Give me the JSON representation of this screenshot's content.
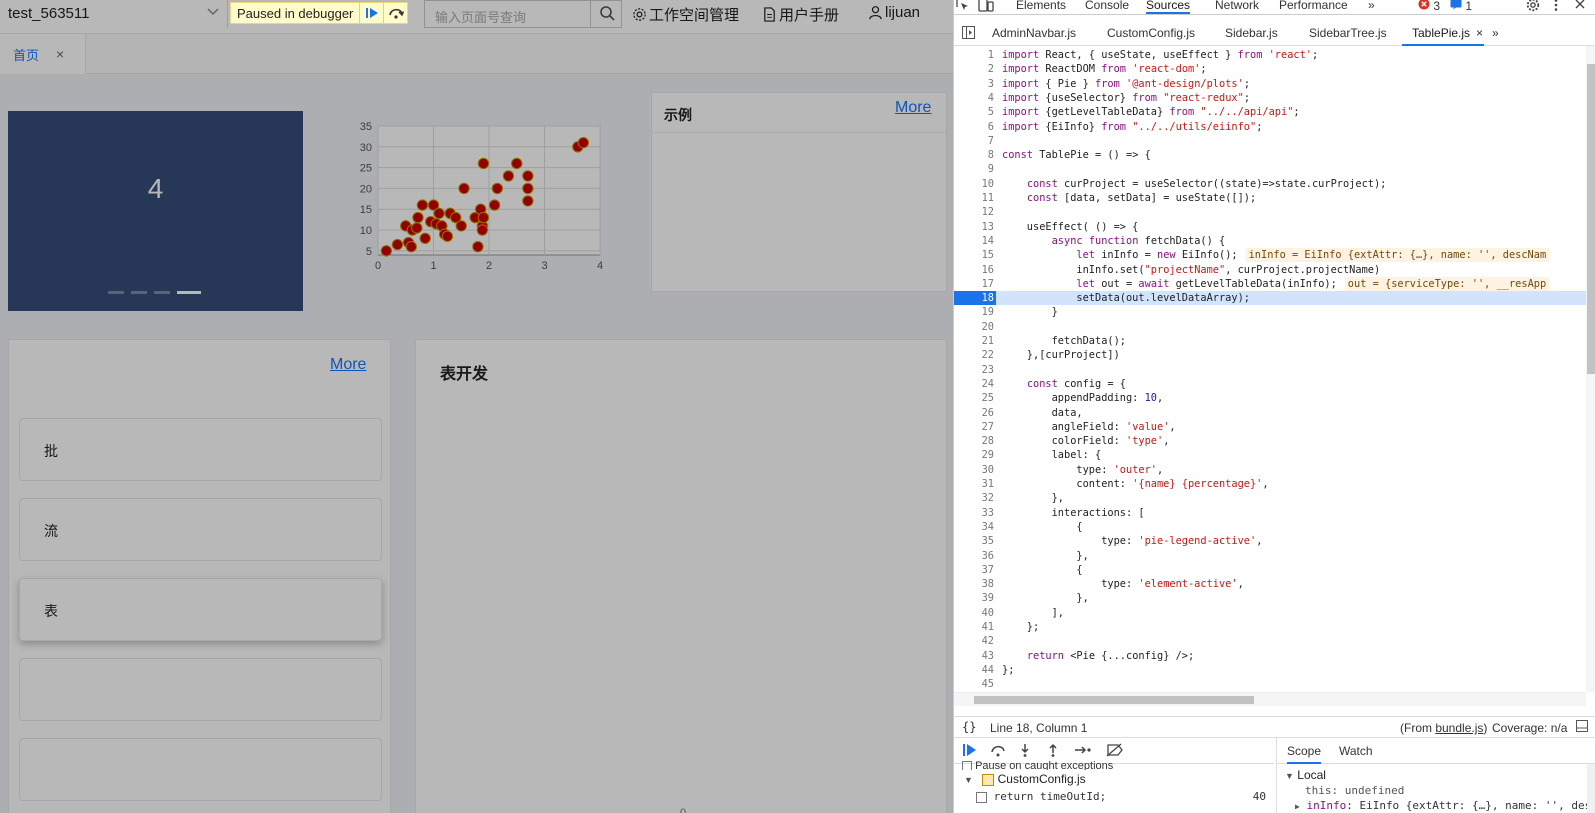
{
  "app": {
    "project_name": "test_563511",
    "search_placeholder": "输入页面号查询",
    "nav": {
      "workspace": "工作空间管理",
      "manual": "用户手册",
      "user": "lijuan"
    },
    "tab_home": "首页",
    "tab_close": "×",
    "carousel_value": "4",
    "carousel_slide_count": 4,
    "carousel_active_index": 3,
    "example_card": {
      "title": "示例",
      "more": "More"
    },
    "list_card": {
      "more": "More",
      "items": [
        {
          "label": "批",
          "selected": false
        },
        {
          "label": "流",
          "selected": false
        },
        {
          "label": "表",
          "selected": true
        },
        {
          "label": "",
          "selected": false
        },
        {
          "label": "",
          "selected": false
        }
      ]
    },
    "dev_card": {
      "title": "表开发",
      "axis_zero": "0"
    },
    "paused_banner": "Paused in debugger"
  },
  "chart_data": {
    "type": "scatter",
    "title": "",
    "xlabel": "",
    "ylabel": "",
    "xlim": [
      0,
      4
    ],
    "ylim": [
      4,
      35
    ],
    "xticks": [
      "0",
      "1",
      "2",
      "3",
      "4"
    ],
    "yticks": [
      "5",
      "10",
      "15",
      "20",
      "25",
      "30",
      "35"
    ],
    "grid": true,
    "point_color": "#cc0000",
    "point_stroke": "#c8a000",
    "points": [
      [
        0.15,
        5
      ],
      [
        0.35,
        6.5
      ],
      [
        0.5,
        11
      ],
      [
        0.55,
        7
      ],
      [
        0.6,
        6
      ],
      [
        0.62,
        10
      ],
      [
        0.7,
        10.5
      ],
      [
        0.72,
        13
      ],
      [
        0.8,
        16
      ],
      [
        0.85,
        8
      ],
      [
        0.95,
        12
      ],
      [
        1.0,
        16
      ],
      [
        1.05,
        11.5
      ],
      [
        1.1,
        14
      ],
      [
        1.15,
        11
      ],
      [
        1.2,
        9
      ],
      [
        1.25,
        8.5
      ],
      [
        1.3,
        14
      ],
      [
        1.4,
        13
      ],
      [
        1.5,
        11
      ],
      [
        1.55,
        20
      ],
      [
        1.75,
        13
      ],
      [
        1.8,
        6
      ],
      [
        1.85,
        15
      ],
      [
        1.88,
        11
      ],
      [
        1.88,
        10
      ],
      [
        1.9,
        26
      ],
      [
        1.9,
        13
      ],
      [
        2.1,
        16
      ],
      [
        2.15,
        20
      ],
      [
        2.35,
        23
      ],
      [
        2.5,
        26
      ],
      [
        2.7,
        23
      ],
      [
        2.7,
        20
      ],
      [
        2.7,
        17
      ],
      [
        3.6,
        30
      ],
      [
        3.7,
        31
      ]
    ]
  },
  "devtools": {
    "tabs": [
      "Elements",
      "Console",
      "Sources",
      "Network",
      "Performance"
    ],
    "active_tab": "Sources",
    "more_tabs": "»",
    "error_count": "3",
    "message_count": "1",
    "files": [
      "AdminNavbar.js",
      "CustomConfig.js",
      "Sidebar.js",
      "SidebarTree.js",
      "TablePie.js"
    ],
    "active_file": "TablePie.js",
    "file_close": "×",
    "current_line": 18,
    "code": [
      {
        "n": "1",
        "t": "import React, { useState, useEffect } from 'react';"
      },
      {
        "n": "2",
        "t": "import ReactDOM from 'react-dom';"
      },
      {
        "n": "3",
        "t": "import { Pie } from '@ant-design/plots';"
      },
      {
        "n": "4",
        "t": "import {useSelector} from \"react-redux\";"
      },
      {
        "n": "5",
        "t": "import {getLevelTableData} from \"../../api/api\";"
      },
      {
        "n": "6",
        "t": "import {EiInfo} from \"../../utils/eiinfo\";"
      },
      {
        "n": "7",
        "t": ""
      },
      {
        "n": "8",
        "t": "const TablePie = () => {"
      },
      {
        "n": "9",
        "t": ""
      },
      {
        "n": "10",
        "t": "    const curProject = useSelector((state)=>state.curProject);"
      },
      {
        "n": "11",
        "t": "    const [data, setData] = useState([]);"
      },
      {
        "n": "12",
        "t": ""
      },
      {
        "n": "13",
        "t": "    useEffect( () => {"
      },
      {
        "n": "14",
        "t": "        async function fetchData() {"
      },
      {
        "n": "15",
        "t": "            let inInfo = new EiInfo();",
        "inline": "inInfo = EiInfo {extAttr: {…}, name: '', descNam"
      },
      {
        "n": "16",
        "t": "            inInfo.set(\"projectName\", curProject.projectName)"
      },
      {
        "n": "17",
        "t": "            let out = await getLevelTableData(inInfo);",
        "inline": "out = {serviceType: '', __resApp"
      },
      {
        "n": "18",
        "t": "            setData(out.levelDataArray);"
      },
      {
        "n": "19",
        "t": "        }"
      },
      {
        "n": "20",
        "t": ""
      },
      {
        "n": "21",
        "t": "        fetchData();"
      },
      {
        "n": "22",
        "t": "    },[curProject])"
      },
      {
        "n": "23",
        "t": ""
      },
      {
        "n": "24",
        "t": "    const config = {"
      },
      {
        "n": "25",
        "t": "        appendPadding: 10,"
      },
      {
        "n": "26",
        "t": "        data,"
      },
      {
        "n": "27",
        "t": "        angleField: 'value',"
      },
      {
        "n": "28",
        "t": "        colorField: 'type',"
      },
      {
        "n": "29",
        "t": "        label: {"
      },
      {
        "n": "30",
        "t": "            type: 'outer',"
      },
      {
        "n": "31",
        "t": "            content: '{name} {percentage}',"
      },
      {
        "n": "32",
        "t": "        },"
      },
      {
        "n": "33",
        "t": "        interactions: ["
      },
      {
        "n": "34",
        "t": "            {"
      },
      {
        "n": "35",
        "t": "                type: 'pie-legend-active',"
      },
      {
        "n": "36",
        "t": "            },"
      },
      {
        "n": "37",
        "t": "            {"
      },
      {
        "n": "38",
        "t": "                type: 'element-active',"
      },
      {
        "n": "39",
        "t": "            },"
      },
      {
        "n": "40",
        "t": "        ],"
      },
      {
        "n": "41",
        "t": "    };"
      },
      {
        "n": "42",
        "t": ""
      },
      {
        "n": "43",
        "t": "    return <Pie {...config} />;"
      },
      {
        "n": "44",
        "t": "};"
      },
      {
        "n": "45",
        "t": ""
      }
    ],
    "status": {
      "position": "Line 18, Column 1",
      "from_prefix": "(From ",
      "from_file": "bundle.js",
      "from_suffix": ")",
      "coverage": "Coverage: n/a"
    },
    "breakpoints": {
      "pause_caught": "Pause on caught exceptions",
      "file": "CustomConfig.js",
      "bp_code": "return timeOutId;",
      "bp_line": "40"
    },
    "scope": {
      "tabs": [
        "Scope",
        "Watch"
      ],
      "section": "Local",
      "this_label": "this: undefined",
      "in_info_name": "inInfo",
      "in_info_value": ": EiInfo {extAttr: {…}, name: '', desc"
    }
  }
}
